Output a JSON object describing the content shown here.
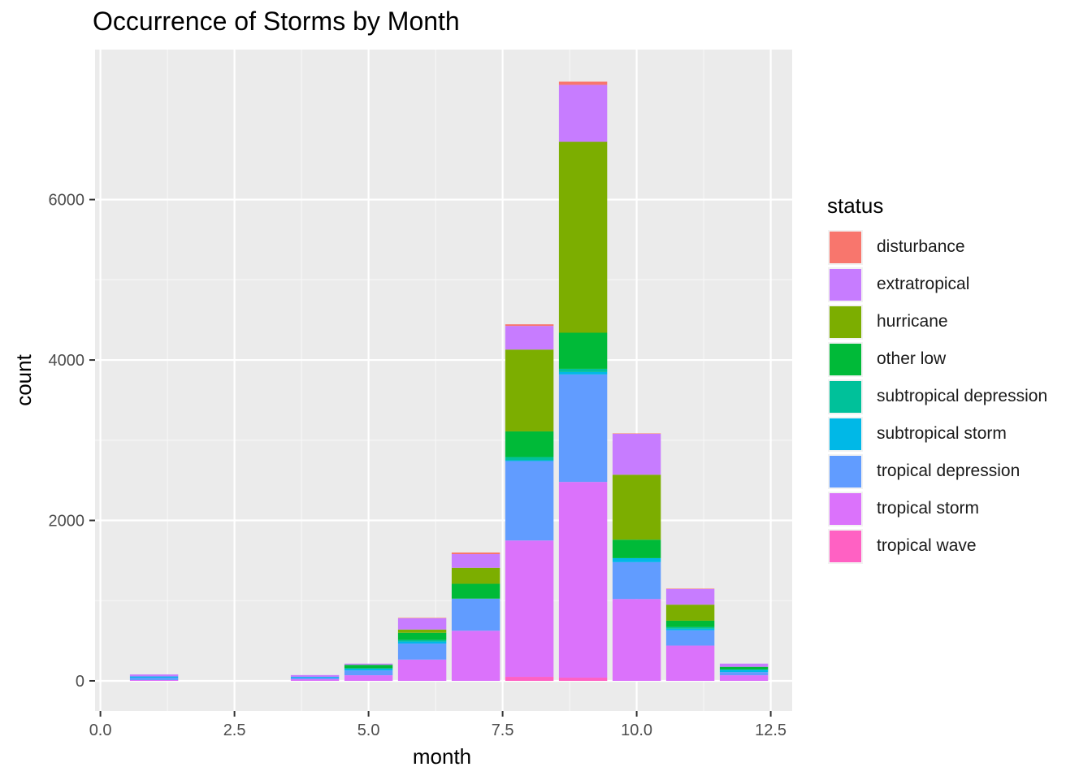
{
  "chart_data": {
    "type": "bar",
    "stacked": true,
    "title": "Occurrence of Storms by Month",
    "xlabel": "month",
    "ylabel": "count",
    "xlim": [
      -0.1,
      12.9
    ],
    "ylim": [
      -375,
      7870
    ],
    "x_ticks": [
      0,
      2.5,
      5,
      7.5,
      10,
      12.5
    ],
    "x_tick_labels": [
      "0.0",
      "2.5",
      "5.0",
      "7.5",
      "10.0",
      "12.5"
    ],
    "y_ticks": [
      0,
      2000,
      4000,
      6000
    ],
    "y_tick_labels": [
      "0",
      "2000",
      "4000",
      "6000"
    ],
    "grid": true,
    "legend_position": "right",
    "legend_title": "status",
    "categories": [
      1,
      4,
      5,
      6,
      7,
      8,
      9,
      10,
      11,
      12
    ],
    "series": [
      {
        "name": "disturbance",
        "color": "#F8766D",
        "values": [
          0,
          0,
          0,
          5,
          20,
          20,
          40,
          5,
          5,
          0
        ]
      },
      {
        "name": "extratropical",
        "color": "#C77CFF",
        "values": [
          25,
          22,
          15,
          140,
          170,
          295,
          710,
          510,
          195,
          40
        ]
      },
      {
        "name": "hurricane",
        "color": "#7CAE00",
        "values": [
          0,
          0,
          0,
          40,
          200,
          1020,
          2380,
          810,
          200,
          0
        ]
      },
      {
        "name": "other low",
        "color": "#00BA38",
        "values": [
          0,
          0,
          45,
          90,
          185,
          320,
          450,
          230,
          80,
          35
        ]
      },
      {
        "name": "subtropical depression",
        "color": "#00C19A",
        "values": [
          0,
          0,
          0,
          20,
          0,
          40,
          40,
          0,
          20,
          0
        ]
      },
      {
        "name": "subtropical storm",
        "color": "#00B8E7",
        "values": [
          15,
          10,
          25,
          25,
          0,
          10,
          30,
          50,
          20,
          30
        ]
      },
      {
        "name": "tropical depression",
        "color": "#619CFF",
        "values": [
          30,
          20,
          60,
          200,
          400,
          990,
          1340,
          460,
          190,
          40
        ]
      },
      {
        "name": "tropical storm",
        "color": "#DB72FB",
        "values": [
          10,
          20,
          70,
          265,
          625,
          1700,
          2440,
          1020,
          440,
          70
        ]
      },
      {
        "name": "tropical wave",
        "color": "#FF61C3",
        "values": [
          0,
          0,
          0,
          0,
          0,
          50,
          40,
          0,
          0,
          0
        ]
      }
    ]
  }
}
